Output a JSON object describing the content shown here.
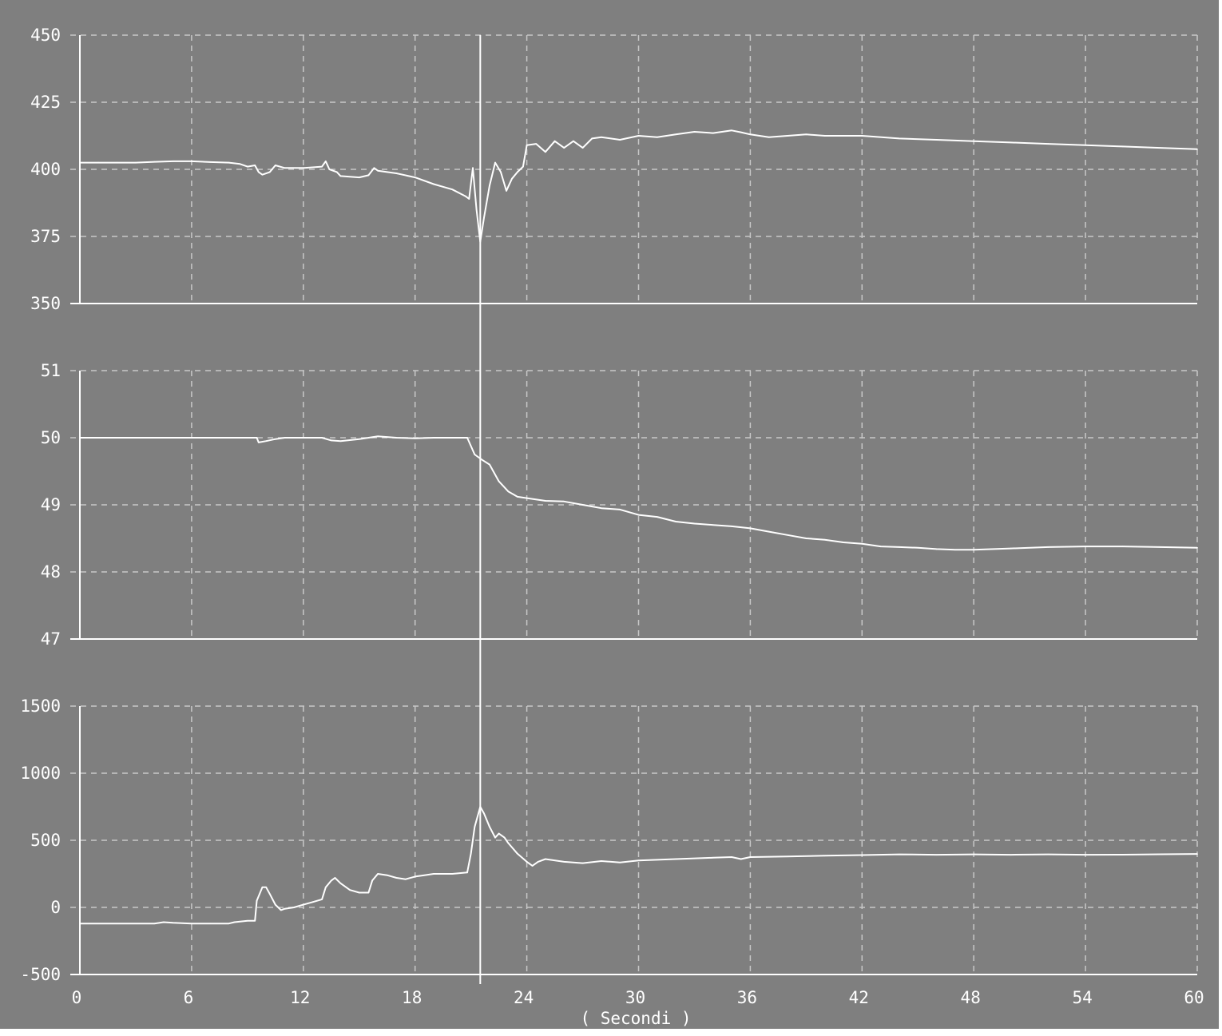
{
  "colors": {
    "background": "#7f7f7f",
    "trace": "#ffffff",
    "grid": "#c8c8c8",
    "frame": "#ffffff"
  },
  "x_axis": {
    "label": "( Secondi )",
    "ticks": [
      "0",
      "6",
      "12",
      "18",
      "24",
      "30",
      "36",
      "42",
      "48",
      "54",
      "60"
    ]
  },
  "chart_data": [
    {
      "type": "line",
      "grid": true,
      "xlim": [
        0,
        60
      ],
      "ylim": [
        350,
        450
      ],
      "y_ticks": [
        "450",
        "425",
        "400",
        "375",
        "350"
      ],
      "cursor_x": 21.5,
      "series": [
        {
          "x": [
            0,
            1,
            2,
            3,
            4,
            5,
            6,
            7,
            8,
            8.6,
            9,
            9.4,
            9.6,
            9.8,
            10.2,
            10.5,
            11,
            12,
            13,
            13.2,
            13.4,
            13.8,
            14,
            15,
            15.5,
            15.8,
            16,
            16.5,
            17,
            18,
            19,
            20,
            20.7,
            20.9,
            21.1,
            21.3,
            21.5,
            21.7,
            22,
            22.3,
            22.6,
            22.9,
            23.2,
            23.5,
            23.8,
            24,
            24.5,
            25,
            25.5,
            26,
            26.5,
            27,
            27.5,
            28,
            29,
            30,
            31,
            32,
            33,
            34,
            35,
            35.5,
            36,
            37,
            38,
            39,
            40,
            41,
            42,
            44,
            46,
            48,
            50,
            52,
            54,
            56,
            58,
            60
          ],
          "y": [
            402.5,
            402.5,
            402.5,
            402.5,
            402.8,
            403,
            403,
            402.7,
            402.5,
            402,
            401,
            401.5,
            399,
            398,
            399,
            401.5,
            400.5,
            400.5,
            401,
            403,
            400,
            399,
            397.5,
            397,
            397.8,
            400.5,
            399.5,
            399,
            398.5,
            397,
            394.5,
            392.5,
            390,
            389,
            400.5,
            385,
            373,
            382,
            394,
            402.5,
            399,
            392,
            396.5,
            399,
            401,
            409,
            409.5,
            406.5,
            410.5,
            408,
            410.5,
            408,
            411.5,
            412,
            411,
            412.5,
            412,
            413,
            414,
            413.5,
            414.5,
            413.8,
            413,
            412,
            412.5,
            413,
            412.5,
            412.5,
            412.5,
            411.5,
            411,
            410.5,
            410,
            409.5,
            409,
            408.5,
            408,
            407.5
          ]
        }
      ]
    },
    {
      "type": "line",
      "grid": true,
      "xlim": [
        0,
        60
      ],
      "ylim": [
        47,
        51
      ],
      "y_ticks": [
        "51",
        "50",
        "49",
        "48",
        "47"
      ],
      "cursor_x": 21.5,
      "series": [
        {
          "x": [
            0,
            2,
            4,
            6,
            8,
            9.5,
            9.6,
            10,
            10.5,
            11,
            12,
            13,
            13.5,
            14,
            15,
            16,
            17,
            18,
            19,
            20,
            20.8,
            21.2,
            21.6,
            22,
            22.5,
            23,
            23.5,
            24,
            25,
            26,
            27,
            28,
            29,
            30,
            31,
            32,
            33,
            34,
            35,
            36,
            37,
            38,
            39,
            40,
            41,
            42,
            43,
            44,
            45,
            46,
            47,
            48,
            50,
            52,
            54,
            56,
            58,
            60
          ],
          "y": [
            50,
            50,
            50,
            50,
            50,
            50,
            49.93,
            49.95,
            49.98,
            50,
            50,
            50,
            49.96,
            49.95,
            49.98,
            50.02,
            50,
            49.99,
            50,
            50,
            50,
            49.75,
            49.67,
            49.6,
            49.35,
            49.2,
            49.12,
            49.1,
            49.06,
            49.05,
            49.0,
            48.95,
            48.93,
            48.85,
            48.82,
            48.75,
            48.72,
            48.7,
            48.68,
            48.65,
            48.6,
            48.55,
            48.5,
            48.48,
            48.44,
            48.42,
            48.38,
            48.37,
            48.36,
            48.34,
            48.33,
            48.33,
            48.35,
            48.37,
            48.38,
            48.38,
            48.37,
            48.36
          ]
        }
      ]
    },
    {
      "type": "line",
      "grid": true,
      "xlim": [
        0,
        60
      ],
      "ylim": [
        -500,
        1500
      ],
      "y_ticks": [
        "1500",
        "1000",
        "500",
        "0",
        "-500"
      ],
      "cursor_x": 21.5,
      "series": [
        {
          "x": [
            0,
            2,
            4,
            4.5,
            5,
            6,
            7,
            8,
            8.3,
            9,
            9.4,
            9.5,
            9.8,
            10,
            10.2,
            10.5,
            10.8,
            11,
            11.5,
            12,
            12.5,
            13,
            13.2,
            13.5,
            13.7,
            14,
            14.5,
            15,
            15.5,
            15.7,
            16,
            16.5,
            17,
            17.5,
            18,
            18.5,
            19,
            20,
            20.8,
            21,
            21.2,
            21.5,
            21.7,
            22,
            22.3,
            22.5,
            22.8,
            23,
            23.5,
            24,
            24.3,
            24.6,
            25,
            26,
            27,
            28,
            29,
            30,
            32,
            34,
            35,
            35.5,
            36,
            38,
            40,
            42,
            44,
            46,
            48,
            50,
            52,
            54,
            56,
            58,
            60
          ],
          "y": [
            -120,
            -120,
            -120,
            -110,
            -115,
            -120,
            -120,
            -120,
            -110,
            -100,
            -100,
            50,
            150,
            150,
            100,
            20,
            -20,
            -10,
            0,
            20,
            40,
            60,
            150,
            200,
            220,
            180,
            130,
            110,
            110,
            200,
            250,
            240,
            220,
            210,
            230,
            240,
            250,
            250,
            260,
            400,
            600,
            750,
            700,
            600,
            520,
            550,
            520,
            480,
            400,
            340,
            310,
            340,
            360,
            340,
            330,
            345,
            335,
            350,
            360,
            370,
            375,
            360,
            375,
            380,
            385,
            390,
            395,
            392,
            395,
            392,
            395,
            392,
            393,
            396,
            398
          ]
        }
      ]
    }
  ]
}
